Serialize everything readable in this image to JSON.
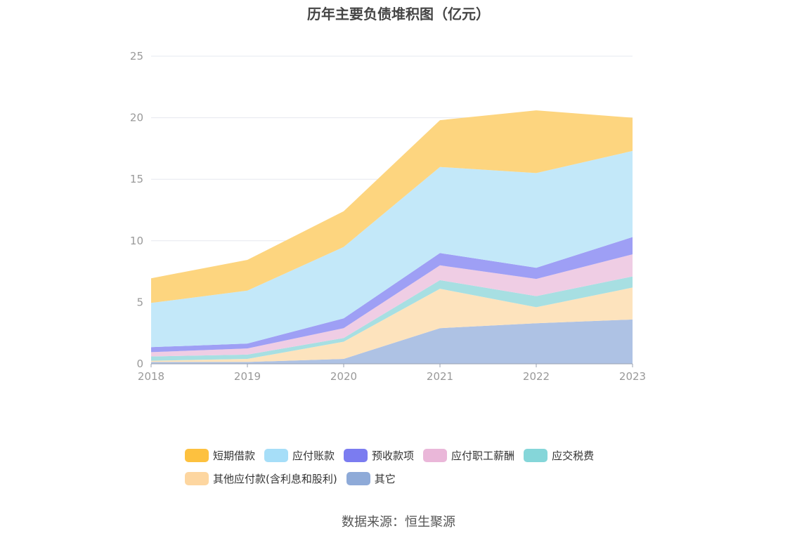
{
  "chart_data": {
    "type": "area",
    "title": "历年主要负债堆积图（亿元）",
    "x": [
      "2018",
      "2019",
      "2020",
      "2021",
      "2022",
      "2023"
    ],
    "ylim": [
      0,
      25
    ],
    "yticks": [
      "0",
      "5",
      "10",
      "15",
      "20",
      "25"
    ],
    "stacked": true,
    "grid": true,
    "legend_position": "bottom",
    "series": [
      {
        "name": "其它",
        "color": "#8eaad8",
        "fill": "#aec2e4",
        "values": [
          0.15,
          0.15,
          0.4,
          2.9,
          3.3,
          3.6
        ]
      },
      {
        "name": "其他应付款(含利息和股利)",
        "color": "#fdd6a0",
        "fill": "#fde3bd",
        "values": [
          0.1,
          0.25,
          1.4,
          3.2,
          1.3,
          2.6
        ]
      },
      {
        "name": "应交税费",
        "color": "#85d6d9",
        "fill": "#a7dfe2",
        "values": [
          0.35,
          0.35,
          0.3,
          0.7,
          0.9,
          0.9
        ]
      },
      {
        "name": "应付职工薪酬",
        "color": "#eab7d9",
        "fill": "#efcde4",
        "values": [
          0.35,
          0.5,
          0.8,
          1.2,
          1.4,
          1.8
        ]
      },
      {
        "name": "预收款项",
        "color": "#7b7cf0",
        "fill": "#9e9ff5",
        "values": [
          0.4,
          0.4,
          0.8,
          1.0,
          0.9,
          1.4
        ]
      },
      {
        "name": "应付账款",
        "color": "#a6def8",
        "fill": "#c3e8f9",
        "values": [
          3.6,
          4.3,
          5.8,
          7.0,
          7.7,
          7.0
        ]
      },
      {
        "name": "短期借款",
        "color": "#fdc13f",
        "fill": "#fdd57f",
        "values": [
          2.0,
          2.5,
          2.9,
          3.8,
          5.1,
          2.7
        ]
      }
    ],
    "legend": [
      [
        "短期借款",
        "应付账款",
        "预收款项",
        "应付职工薪酬",
        "应交税费"
      ],
      [
        "其他应付款(含利息和股利)",
        "其它"
      ]
    ]
  },
  "source_text": "数据来源：恒生聚源"
}
